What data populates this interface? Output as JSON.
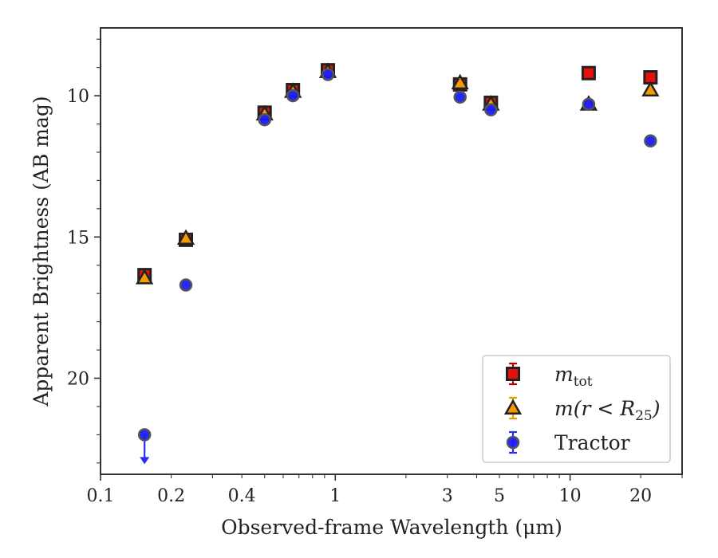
{
  "chart_data": {
    "type": "scatter",
    "xlabel": "Observed-frame Wavelength (μm)",
    "ylabel": "Apparent Brightness (AB mag)",
    "xscale": "log",
    "xlim": [
      0.1,
      30
    ],
    "ylim": [
      23.4,
      7.6
    ],
    "y_inverted": true,
    "xticks": [
      {
        "value": 0.1,
        "label": "0.1"
      },
      {
        "value": 0.2,
        "label": "0.2"
      },
      {
        "value": 0.4,
        "label": "0.4"
      },
      {
        "value": 1,
        "label": "1"
      },
      {
        "value": 3,
        "label": "3"
      },
      {
        "value": 5,
        "label": "5"
      },
      {
        "value": 10,
        "label": "10"
      },
      {
        "value": 20,
        "label": "20"
      }
    ],
    "yticks": [
      {
        "value": 10,
        "label": "10"
      },
      {
        "value": 15,
        "label": "15"
      },
      {
        "value": 20,
        "label": "20"
      }
    ],
    "legend_position": "lower right",
    "series": [
      {
        "key": "mtot",
        "label_main": "m",
        "label_sub": "tot",
        "marker": "square",
        "color": "#e8100e",
        "errcolor": "#c00000",
        "points": [
          {
            "x": 0.154,
            "y": 16.35
          },
          {
            "x": 0.231,
            "y": 15.1
          },
          {
            "x": 0.5,
            "y": 10.6
          },
          {
            "x": 0.66,
            "y": 9.8
          },
          {
            "x": 0.93,
            "y": 9.1
          },
          {
            "x": 3.4,
            "y": 9.6
          },
          {
            "x": 4.6,
            "y": 10.25
          },
          {
            "x": 12.0,
            "y": 9.2
          },
          {
            "x": 22.0,
            "y": 9.35
          }
        ]
      },
      {
        "key": "mr25",
        "label_main": "m(r < R",
        "label_sub": "25",
        "label_tail": ")",
        "marker": "triangle",
        "color": "#f59a00",
        "errcolor": "#e0a000",
        "points": [
          {
            "x": 0.154,
            "y": 16.45
          },
          {
            "x": 0.231,
            "y": 15.05
          },
          {
            "x": 0.5,
            "y": 10.65
          },
          {
            "x": 0.66,
            "y": 9.85
          },
          {
            "x": 0.93,
            "y": 9.15
          },
          {
            "x": 3.4,
            "y": 9.55
          },
          {
            "x": 4.6,
            "y": 10.3
          },
          {
            "x": 12.0,
            "y": 10.3
          },
          {
            "x": 22.0,
            "y": 9.8
          }
        ]
      },
      {
        "key": "tractor",
        "label_main": "Tractor",
        "marker": "circle",
        "color": "#1a1aff",
        "errcolor": "#2a2aff",
        "points": [
          {
            "x": 0.154,
            "y": 22.0,
            "upper_limit": true
          },
          {
            "x": 0.231,
            "y": 16.7
          },
          {
            "x": 0.5,
            "y": 10.85
          },
          {
            "x": 0.66,
            "y": 10.0
          },
          {
            "x": 0.93,
            "y": 9.25
          },
          {
            "x": 3.4,
            "y": 10.05
          },
          {
            "x": 4.6,
            "y": 10.5
          },
          {
            "x": 12.0,
            "y": 10.3
          },
          {
            "x": 22.0,
            "y": 11.6
          }
        ]
      }
    ]
  }
}
